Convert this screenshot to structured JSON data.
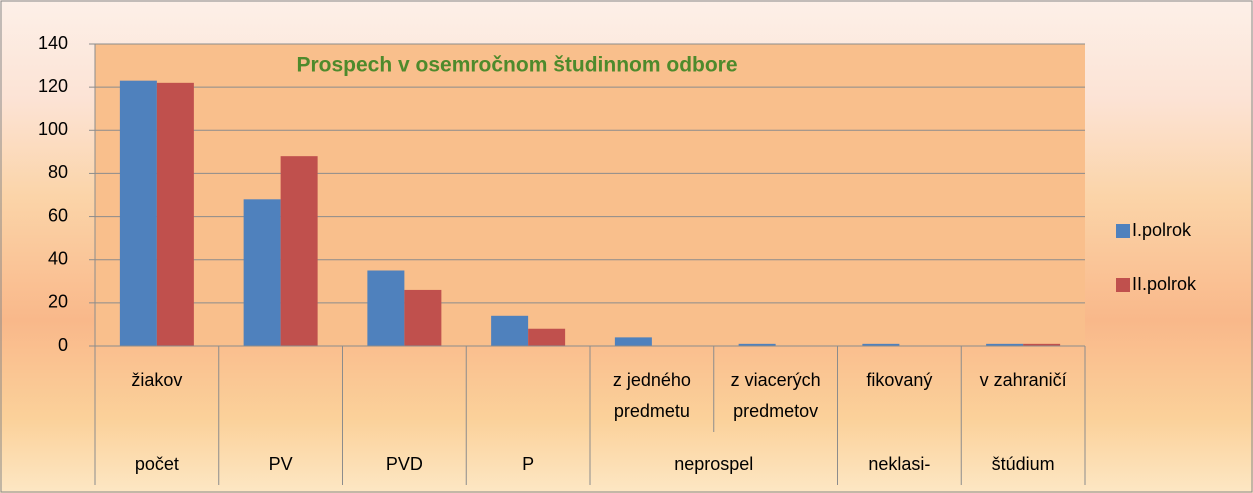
{
  "chart_data": {
    "type": "bar",
    "title": "Prospech v osemročnom študinnom odbore",
    "categories": [
      "žiakov",
      null,
      null,
      null,
      "z jedného predmetu",
      "z viacerých predmetov",
      "fikovaný",
      "v zahraničí"
    ],
    "groups": [
      {
        "label": "počet",
        "span": 1
      },
      {
        "label": "PV",
        "span": 1
      },
      {
        "label": "PVD",
        "span": 1
      },
      {
        "label": "P",
        "span": 1
      },
      {
        "label": "neprospel",
        "span": 2
      },
      {
        "label": "neklasi-",
        "span": 1
      },
      {
        "label": "štúdium",
        "span": 1
      }
    ],
    "series": [
      {
        "name": "I.polrok",
        "color": "#4f81bd",
        "values": [
          123,
          68,
          35,
          14,
          4,
          1,
          1,
          1
        ]
      },
      {
        "name": "II.polrok",
        "color": "#c0504d",
        "values": [
          122,
          88,
          26,
          8,
          0,
          0,
          0,
          1
        ]
      }
    ],
    "ylim": [
      0,
      140
    ],
    "yticks": [
      0,
      20,
      40,
      60,
      80,
      100,
      120,
      140
    ],
    "grid": true,
    "legend": "right"
  }
}
